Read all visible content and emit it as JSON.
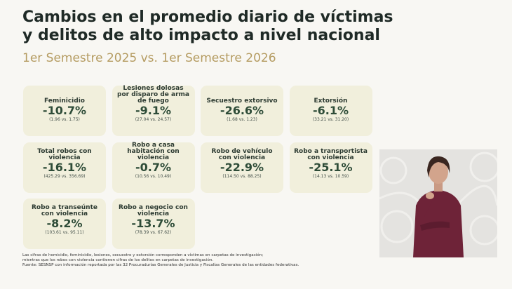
{
  "header": {
    "title_lines": [
      "Cambios en el promedio diario de víctimas",
      "y delitos de alto impacto a nivel nacional"
    ],
    "subtitle": "1er Semestre 2025 vs. 1er Semestre 2026"
  },
  "cards": [
    {
      "label": "Feminicidio",
      "value": "-10.7%",
      "detail": "(1.96 vs. 1.75)"
    },
    {
      "label": "Lesiones dolosas por disparo de arma de fuego",
      "value": "-9.1%",
      "detail": "(27.04 vs. 24.57)"
    },
    {
      "label": "Secuestro extorsivo",
      "value": "-26.6%",
      "detail": "(1.68 vs. 1.23)"
    },
    {
      "label": "Extorsión",
      "value": "-6.1%",
      "detail": "(33.21 vs. 31.20)"
    },
    {
      "label": "Total robos con violencia",
      "value": "-16.1%",
      "detail": "(425.29 vs. 356.69)"
    },
    {
      "label": "Robo a casa habitación con violencia",
      "value": "-0.7%",
      "detail": "(10.56 vs. 10.49)"
    },
    {
      "label": "Robo de vehículo con violencia",
      "value": "-22.9%",
      "detail": "(114.50 vs. 88.25)"
    },
    {
      "label": "Robo a transportista con violencia",
      "value": "-25.1%",
      "detail": "(14.13 vs. 10.59)"
    },
    {
      "label": "Robo a transeúnte con violencia",
      "value": "-8.2%",
      "detail": "(103.61 vs. 95.11)"
    },
    {
      "label": "Robo a negocio con violencia",
      "value": "-13.7%",
      "detail": "(78.39 vs. 67.62)"
    }
  ],
  "footnotes": [
    "Las cifras de homicidio, feminicidio, lesiones, secuestro y extorsión corresponden a víctimas en carpetas de investigación;",
    "mientras que los robos con violencia contienen cifras de los delitos en carpetas de investigación.",
    "Fuente: SESNSP con información reportada por las 32 Procuradurías Generales de Justicia y Fiscalías Generales de las entidades federativas."
  ]
}
